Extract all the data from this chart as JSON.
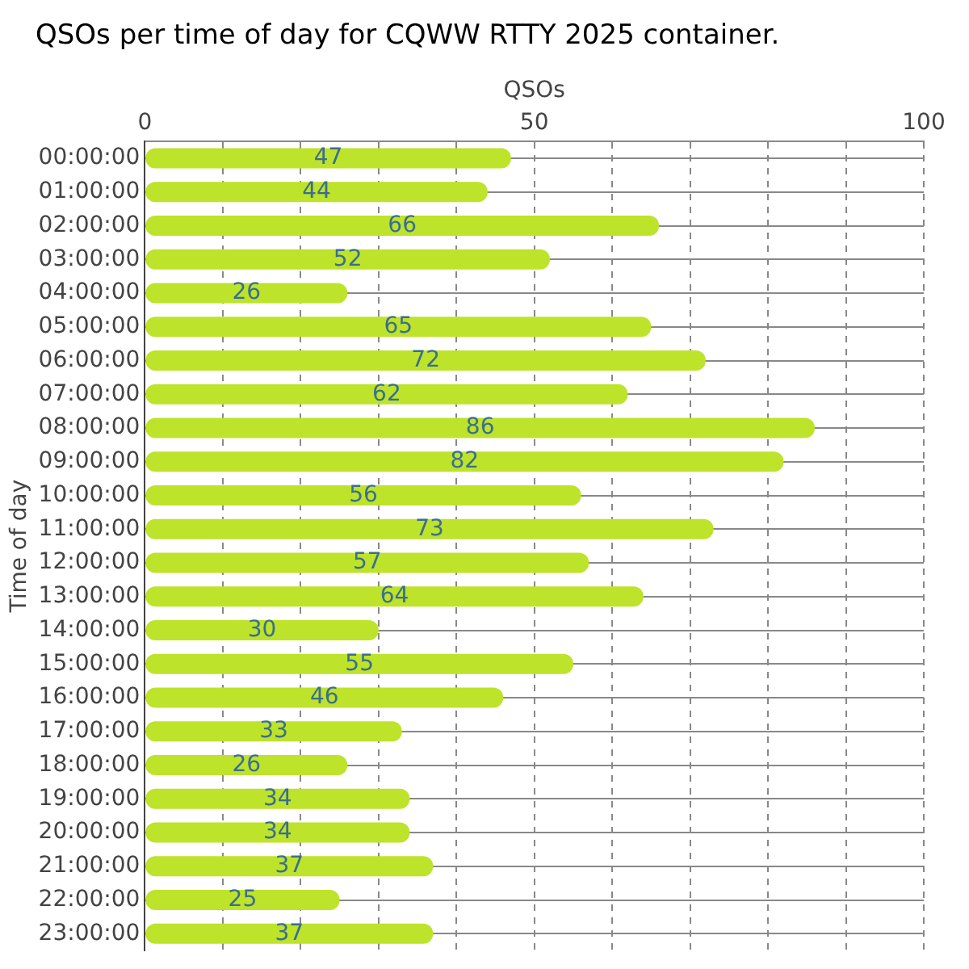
{
  "chart_data": {
    "type": "bar",
    "orientation": "horizontal",
    "title": "QSOs per time of day for CQWW RTTY 2025 container.",
    "xlabel": "QSOs",
    "ylabel": "Time of day",
    "categories": [
      "00:00:00",
      "01:00:00",
      "02:00:00",
      "03:00:00",
      "04:00:00",
      "05:00:00",
      "06:00:00",
      "07:00:00",
      "08:00:00",
      "09:00:00",
      "10:00:00",
      "11:00:00",
      "12:00:00",
      "13:00:00",
      "14:00:00",
      "15:00:00",
      "16:00:00",
      "17:00:00",
      "18:00:00",
      "19:00:00",
      "20:00:00",
      "21:00:00",
      "22:00:00",
      "23:00:00"
    ],
    "values": [
      47,
      44,
      66,
      52,
      26,
      65,
      72,
      62,
      86,
      82,
      56,
      73,
      57,
      64,
      30,
      55,
      46,
      33,
      26,
      34,
      34,
      37,
      25,
      37
    ],
    "color": "#bde32a",
    "xlim": [
      0,
      100
    ],
    "xticks": [
      0,
      {
        "value": 10,
        "label": null
      },
      {
        "value": 20,
        "label": null
      },
      {
        "value": 30,
        "label": null
      },
      {
        "value": 40,
        "label": null
      },
      50,
      {
        "value": 60,
        "label": null
      },
      {
        "value": 70,
        "label": null
      },
      {
        "value": 80,
        "label": null
      },
      {
        "value": 90,
        "label": null
      },
      100
    ],
    "grid": true,
    "data_labels": true,
    "legend": false
  }
}
